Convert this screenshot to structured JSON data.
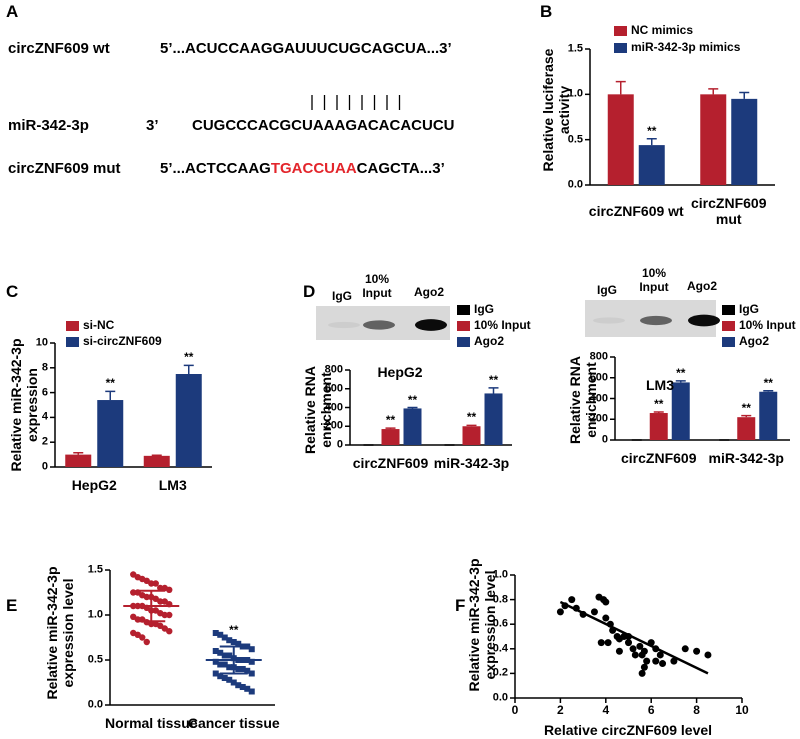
{
  "sequence_panel": {
    "panel_label": "A",
    "rows": [
      {
        "name": "circZNF609 wt",
        "parts": [
          "5’...ACUCCAAGGAUUUCUGCAGCUA...3’"
        ]
      },
      {
        "name": "miR-342-3p",
        "parts": [
          "3’",
          "CUGCCCACGCUAAAGACACACUCU"
        ]
      },
      {
        "name": "circZNF609 mut",
        "parts": [
          "5’...ACTCCAAG",
          "TGACCUAA",
          "CAGCTA...3’"
        ]
      }
    ]
  },
  "chart_data": [
    {
      "type": "bar",
      "panel_label": "B",
      "ylabel": "Relative luciferase activity",
      "categories": [
        "circZNF609 wt",
        "circZNF609 mut"
      ],
      "series": [
        {
          "name": "NC mimics",
          "color": "#b5202e",
          "values": [
            1.0,
            1.0
          ],
          "errors": [
            0.14,
            0.06
          ],
          "significance": [
            null,
            null
          ]
        },
        {
          "name": "miR-342-3p mimics",
          "color": "#1c3a7c",
          "values": [
            0.44,
            0.95
          ],
          "errors": [
            0.07,
            0.07
          ],
          "significance": [
            "**",
            null
          ]
        }
      ],
      "ylim": [
        0,
        1.5
      ],
      "yticks": [
        {
          "value": 0,
          "label": "0.0"
        },
        0.5,
        {
          "value": 1,
          "label": "1.0"
        },
        1.5
      ]
    },
    {
      "type": "bar",
      "panel_label": "C",
      "ylabel": "Relative miR-342-3p expression",
      "categories": [
        "HepG2",
        "LM3"
      ],
      "series": [
        {
          "name": "si-NC",
          "color": "#b5202e",
          "values": [
            1.0,
            0.9
          ],
          "errors": [
            0.15,
            0.05
          ],
          "significance": [
            null,
            null
          ]
        },
        {
          "name": "si-circZNF609",
          "color": "#1c3a7c",
          "values": [
            5.4,
            7.5
          ],
          "errors": [
            0.7,
            0.7
          ],
          "significance": [
            "**",
            "**"
          ]
        }
      ],
      "ylim": [
        0,
        10
      ],
      "yticks": [
        0,
        2,
        4,
        6,
        8,
        10
      ]
    },
    {
      "type": "bar",
      "panel_label": "D",
      "title": "HepG2",
      "ylabel": "Relative RNA enrichment",
      "blot_lanes": [
        "IgG",
        "10% Input",
        "Ago2"
      ],
      "categories": [
        "circZNF609",
        "miR-342-3p"
      ],
      "series": [
        {
          "name": "IgG",
          "color": "#000000",
          "values": [
            0,
            0
          ],
          "errors": [
            0,
            0
          ],
          "significance": [
            null,
            null
          ]
        },
        {
          "name": "10% Input",
          "color": "#b5202e",
          "values": [
            170,
            200
          ],
          "errors": [
            10,
            10
          ],
          "significance": [
            "**",
            "**"
          ]
        },
        {
          "name": "Ago2",
          "color": "#1c3a7c",
          "values": [
            390,
            550
          ],
          "errors": [
            10,
            60
          ],
          "significance": [
            "**",
            "**"
          ]
        }
      ],
      "ylim": [
        0,
        800
      ],
      "yticks": [
        0,
        200,
        400,
        600,
        800
      ]
    },
    {
      "type": "bar",
      "title": "LM3",
      "ylabel": "Relative RNA enrichment",
      "blot_lanes": [
        "IgG",
        "10% Input",
        "Ago2"
      ],
      "categories": [
        "circZNF609",
        "miR-342-3p"
      ],
      "series": [
        {
          "name": "IgG",
          "color": "#000000",
          "values": [
            0,
            0
          ],
          "errors": [
            0,
            0
          ],
          "significance": [
            null,
            null
          ]
        },
        {
          "name": "10% Input",
          "color": "#b5202e",
          "values": [
            260,
            220
          ],
          "errors": [
            10,
            15
          ],
          "significance": [
            "**",
            "**"
          ]
        },
        {
          "name": "Ago2",
          "color": "#1c3a7c",
          "values": [
            555,
            465
          ],
          "errors": [
            15,
            10
          ],
          "significance": [
            "**",
            "**"
          ]
        }
      ],
      "ylim": [
        0,
        800
      ],
      "yticks": [
        0,
        200,
        400,
        600,
        800
      ]
    },
    {
      "type": "strip",
      "panel_label": "E",
      "ylabel": "Relative miR-342-3p expression level",
      "categories": [
        "Normal tissue",
        "Cancer tissue"
      ],
      "series": [
        {
          "color": "#b5202e",
          "marker": "circle",
          "mean": 1.1,
          "sd": 0.17,
          "significance": null,
          "values": [
            1.45,
            1.42,
            1.4,
            1.38,
            1.35,
            1.35,
            1.3,
            1.3,
            1.28,
            1.25,
            1.25,
            1.22,
            1.2,
            1.2,
            1.18,
            1.15,
            1.15,
            1.12,
            1.1,
            1.1,
            1.1,
            1.08,
            1.05,
            1.05,
            1.02,
            1.0,
            1.0,
            0.98,
            0.95,
            0.95,
            0.92,
            0.9,
            0.9,
            0.88,
            0.85,
            0.82,
            0.8,
            0.78,
            0.75,
            0.7
          ]
        },
        {
          "color": "#1c3a7c",
          "marker": "square",
          "mean": 0.5,
          "sd": 0.15,
          "significance": "**",
          "values": [
            0.8,
            0.78,
            0.75,
            0.72,
            0.7,
            0.68,
            0.65,
            0.65,
            0.62,
            0.6,
            0.58,
            0.55,
            0.55,
            0.52,
            0.5,
            0.5,
            0.5,
            0.48,
            0.48,
            0.45,
            0.45,
            0.42,
            0.42,
            0.4,
            0.4,
            0.38,
            0.35,
            0.35,
            0.32,
            0.3,
            0.28,
            0.25,
            0.22,
            0.2,
            0.18,
            0.15
          ]
        }
      ],
      "ylim": [
        0,
        1.5
      ],
      "yticks": [
        {
          "value": 0,
          "label": "0.0"
        },
        0.5,
        {
          "value": 1,
          "label": "1.0"
        },
        1.5
      ]
    },
    {
      "type": "scatter",
      "panel_label": "F",
      "xlabel": "Relative circZNF609 level",
      "ylabel": "Relative miR-342-3p expression level",
      "color": "#000000",
      "x": [
        2,
        2.2,
        2.5,
        2.7,
        3,
        3.5,
        3.7,
        3.9,
        4,
        4,
        4.2,
        3.8,
        4.3,
        4.5,
        4.6,
        4.8,
        5,
        4.1,
        5.2,
        5.3,
        5.5,
        5.6,
        5.7,
        5.8,
        5.6,
        5.7,
        6,
        6.2,
        6.4,
        6.5,
        6.2,
        7,
        7.5,
        8,
        8.5,
        4.6,
        5
      ],
      "y": [
        0.7,
        0.75,
        0.8,
        0.73,
        0.68,
        0.7,
        0.82,
        0.8,
        0.78,
        0.65,
        0.6,
        0.45,
        0.55,
        0.5,
        0.48,
        0.5,
        0.45,
        0.45,
        0.4,
        0.35,
        0.42,
        0.35,
        0.38,
        0.3,
        0.2,
        0.25,
        0.45,
        0.4,
        0.35,
        0.28,
        0.3,
        0.3,
        0.4,
        0.38,
        0.35,
        0.38,
        0.5
      ],
      "fit": {
        "x": [
          2,
          8.5
        ],
        "y": [
          0.78,
          0.2
        ]
      },
      "xlim": [
        0,
        10
      ],
      "xticks": [
        0,
        2,
        4,
        6,
        8,
        10
      ],
      "ylim": [
        0,
        1
      ],
      "yticks": [
        {
          "value": 0,
          "label": "0.0"
        },
        0.2,
        0.4,
        0.6,
        0.8,
        {
          "value": 1,
          "label": "1.0"
        }
      ]
    }
  ]
}
